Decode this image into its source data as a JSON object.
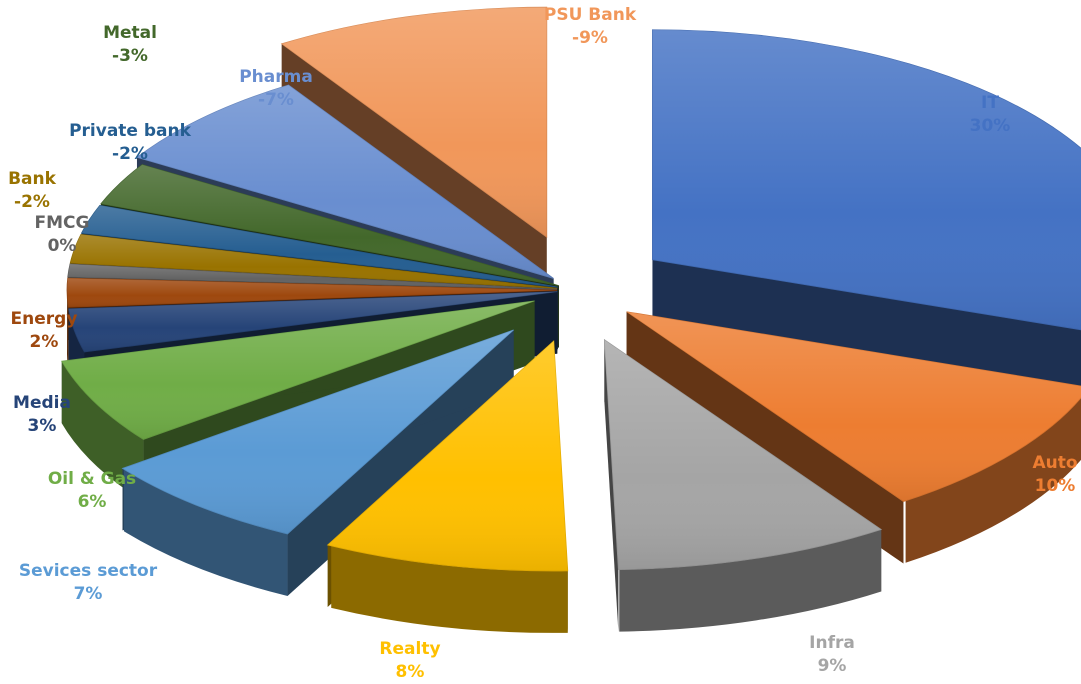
{
  "chart_data": {
    "type": "pie",
    "style": "3d-exploded",
    "title": "",
    "legend": "none",
    "slices": [
      {
        "name": "IT",
        "label": "30%",
        "value": 30,
        "color": "#4472C4"
      },
      {
        "name": "Auto",
        "label": "10%",
        "value": 10,
        "color": "#ED7D31"
      },
      {
        "name": "Infra",
        "label": "9%",
        "value": 9,
        "color": "#A5A5A5"
      },
      {
        "name": "Realty",
        "label": "8%",
        "value": 8,
        "color": "#FFC000"
      },
      {
        "name": "Sevices sector",
        "label": "7%",
        "value": 7,
        "color": "#5B9BD5"
      },
      {
        "name": "Oil & Gas",
        "label": "6%",
        "value": 6,
        "color": "#70AD47"
      },
      {
        "name": "Media",
        "label": "3%",
        "value": 3,
        "color": "#264478"
      },
      {
        "name": "Energy",
        "label": "2%",
        "value": 2,
        "color": "#9E480E"
      },
      {
        "name": "FMCG",
        "label": "0%",
        "value": 0,
        "color": "#636363"
      },
      {
        "name": "Bank",
        "label": "-2%",
        "value": -2,
        "color": "#997300"
      },
      {
        "name": "Private bank",
        "label": "-2%",
        "value": -2,
        "color": "#255E91"
      },
      {
        "name": "Metal",
        "label": "-3%",
        "value": -3,
        "color": "#43682B"
      },
      {
        "name": "Pharma",
        "label": "-7%",
        "value": -7,
        "color": "#698ED0"
      },
      {
        "name": "PSU Bank",
        "label": "-9%",
        "value": -9,
        "color": "#F1975A"
      }
    ]
  }
}
